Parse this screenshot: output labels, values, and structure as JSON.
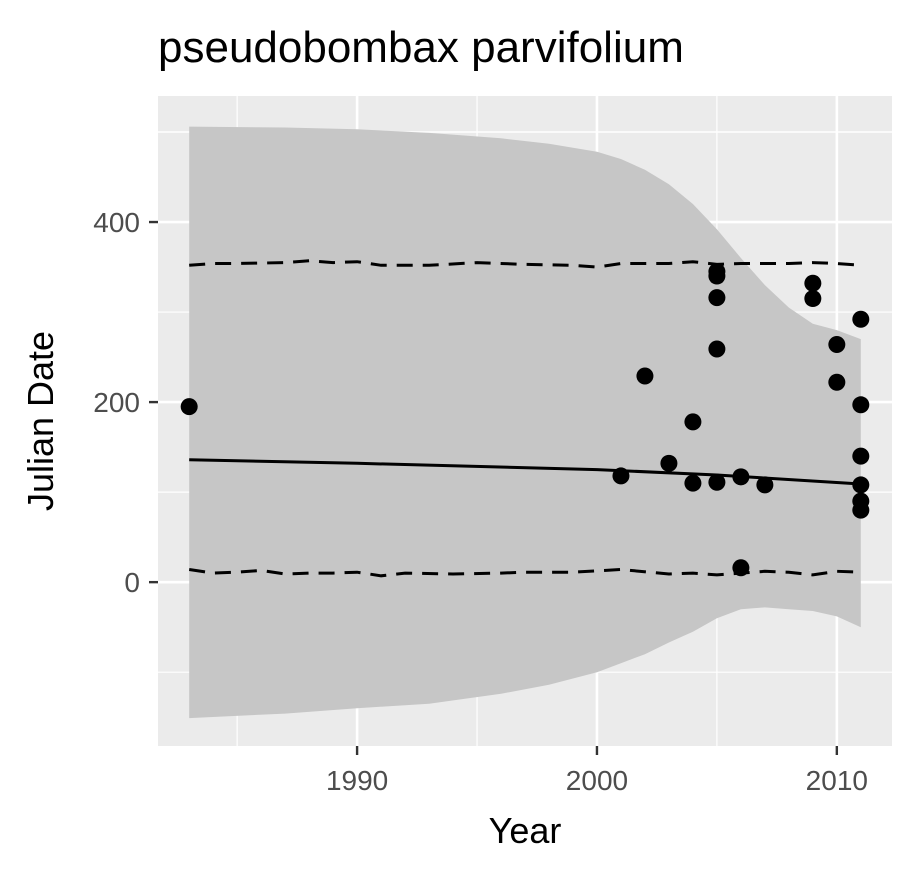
{
  "chart_data": {
    "type": "scatter",
    "title": "pseudobombax parvifolium",
    "xlabel": "Year",
    "ylabel": "Julian Date",
    "xlim": [
      1981.7,
      2012.3
    ],
    "ylim": [
      -182,
      540
    ],
    "x_ticks": [
      1990,
      2000,
      2010
    ],
    "y_ticks": [
      0,
      200,
      400
    ],
    "grid": true,
    "points": [
      [
        1983,
        195
      ],
      [
        2001,
        118
      ],
      [
        2002,
        229
      ],
      [
        2003,
        132
      ],
      [
        2004,
        178
      ],
      [
        2004,
        110
      ],
      [
        2005,
        345
      ],
      [
        2005,
        340
      ],
      [
        2005,
        316
      ],
      [
        2005,
        259
      ],
      [
        2005,
        111
      ],
      [
        2006,
        117
      ],
      [
        2006,
        16
      ],
      [
        2007,
        108
      ],
      [
        2009,
        332
      ],
      [
        2009,
        315
      ],
      [
        2010,
        264
      ],
      [
        2010,
        222
      ],
      [
        2011,
        292
      ],
      [
        2011,
        197
      ],
      [
        2011,
        140
      ],
      [
        2011,
        108
      ],
      [
        2011,
        90
      ],
      [
        2011,
        80
      ]
    ],
    "fit_line": [
      [
        1983,
        136
      ],
      [
        1990,
        132
      ],
      [
        2000,
        125
      ],
      [
        2005,
        119
      ],
      [
        2011,
        109
      ]
    ],
    "upper_dashed": [
      [
        1983,
        352
      ],
      [
        1984,
        354
      ],
      [
        1985,
        354
      ],
      [
        1987,
        355
      ],
      [
        1988,
        357
      ],
      [
        1989,
        355
      ],
      [
        1990,
        356
      ],
      [
        1991,
        352
      ],
      [
        1993,
        352
      ],
      [
        1995,
        355
      ],
      [
        1997,
        353
      ],
      [
        1999,
        352
      ],
      [
        2000,
        350
      ],
      [
        2001,
        354
      ],
      [
        2003,
        354
      ],
      [
        2004,
        356
      ],
      [
        2005,
        353
      ],
      [
        2006,
        354
      ],
      [
        2008,
        354
      ],
      [
        2009,
        355
      ],
      [
        2010,
        354
      ],
      [
        2011,
        352
      ]
    ],
    "lower_dashed": [
      [
        1983,
        14
      ],
      [
        1984,
        10
      ],
      [
        1985,
        11
      ],
      [
        1986,
        13
      ],
      [
        1987,
        9
      ],
      [
        1988,
        10
      ],
      [
        1989,
        10
      ],
      [
        1990,
        11
      ],
      [
        1991,
        7
      ],
      [
        1992,
        10
      ],
      [
        1994,
        9
      ],
      [
        1996,
        10
      ],
      [
        1997,
        11
      ],
      [
        1999,
        11
      ],
      [
        2001,
        14
      ],
      [
        2003,
        9
      ],
      [
        2004,
        10
      ],
      [
        2005,
        8
      ],
      [
        2006,
        10
      ],
      [
        2007,
        12
      ],
      [
        2008,
        11
      ],
      [
        2009,
        8
      ],
      [
        2010,
        12
      ],
      [
        2011,
        11
      ]
    ],
    "ribbon_upper": [
      [
        1983,
        506
      ],
      [
        1987,
        505
      ],
      [
        1990,
        503
      ],
      [
        1993,
        499
      ],
      [
        1996,
        493
      ],
      [
        1998,
        487
      ],
      [
        2000,
        478
      ],
      [
        2001,
        470
      ],
      [
        2002,
        458
      ],
      [
        2003,
        442
      ],
      [
        2004,
        420
      ],
      [
        2005,
        392
      ],
      [
        2006,
        360
      ],
      [
        2007,
        330
      ],
      [
        2008,
        305
      ],
      [
        2009,
        287
      ],
      [
        2010,
        280
      ],
      [
        2011,
        270
      ]
    ],
    "ribbon_lower": [
      [
        1983,
        -151
      ],
      [
        1987,
        -146
      ],
      [
        1990,
        -140
      ],
      [
        1993,
        -135
      ],
      [
        1996,
        -124
      ],
      [
        1998,
        -114
      ],
      [
        2000,
        -100
      ],
      [
        2001,
        -90
      ],
      [
        2002,
        -80
      ],
      [
        2003,
        -67
      ],
      [
        2004,
        -55
      ],
      [
        2005,
        -40
      ],
      [
        2006,
        -30
      ],
      [
        2007,
        -28
      ],
      [
        2008,
        -30
      ],
      [
        2009,
        -32
      ],
      [
        2010,
        -38
      ],
      [
        2011,
        -50
      ]
    ],
    "colors": {
      "panel": "#ebebeb",
      "grid": "#ffffff",
      "ribbon": "#c6c6c6",
      "ink": "#000000",
      "tick_text": "#4d4d4d"
    }
  }
}
